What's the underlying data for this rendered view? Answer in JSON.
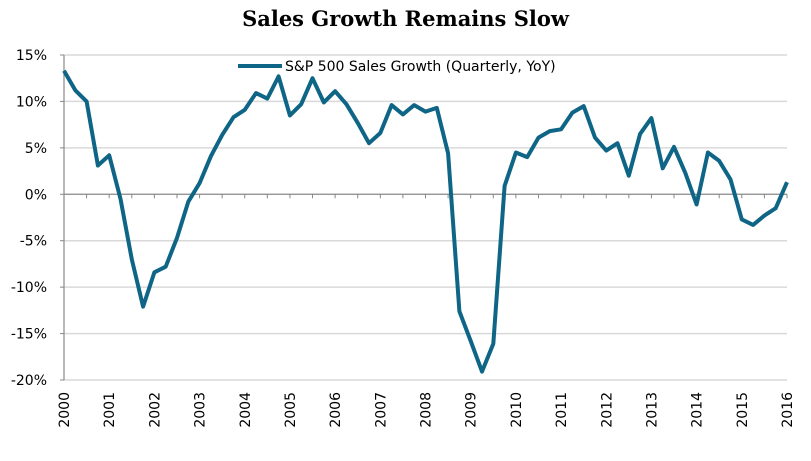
{
  "chart_data": {
    "type": "line",
    "title": "Sales Growth Remains Slow",
    "xlabel": "",
    "ylabel": "",
    "x_tick_labels": [
      "2000",
      "2001",
      "2002",
      "2003",
      "2004",
      "2005",
      "2006",
      "2007",
      "2008",
      "2009",
      "2010",
      "2011",
      "2012",
      "2013",
      "2014",
      "2015",
      "2016"
    ],
    "y_tick_labels": [
      "15%",
      "10%",
      "5%",
      "0%",
      "-5%",
      "-10%",
      "-15%",
      "-20%"
    ],
    "y_ticks": [
      15,
      10,
      5,
      0,
      -5,
      -10,
      -15,
      -20
    ],
    "xlim": [
      2000,
      2016
    ],
    "ylim": [
      -20,
      15
    ],
    "grid": true,
    "legend_position": "top-center",
    "line_color": "#0e6585",
    "series": [
      {
        "name": "S&P 500 Sales Growth (Quarterly, YoY)",
        "x_start": 2000,
        "frequency": "quarterly",
        "values": [
          13.3,
          11.2,
          10.0,
          3.1,
          4.2,
          -0.5,
          -7.0,
          -12.1,
          -8.4,
          -7.8,
          -4.7,
          -0.8,
          1.2,
          4.1,
          6.4,
          8.3,
          9.1,
          10.9,
          10.3,
          12.7,
          8.5,
          9.7,
          12.5,
          9.9,
          11.1,
          9.7,
          7.7,
          5.5,
          6.6,
          9.6,
          8.6,
          9.6,
          8.9,
          9.3,
          4.4,
          -12.6,
          -15.8,
          -19.1,
          -16.1,
          0.9,
          4.5,
          4.0,
          6.1,
          6.8,
          7.0,
          8.8,
          9.5,
          6.1,
          4.7,
          5.5,
          2.0,
          6.5,
          8.2,
          2.8,
          5.1,
          2.3,
          -1.1,
          4.5,
          3.6,
          1.6,
          -2.7,
          -3.3,
          -2.3,
          -1.5,
          1.3
        ]
      }
    ]
  }
}
